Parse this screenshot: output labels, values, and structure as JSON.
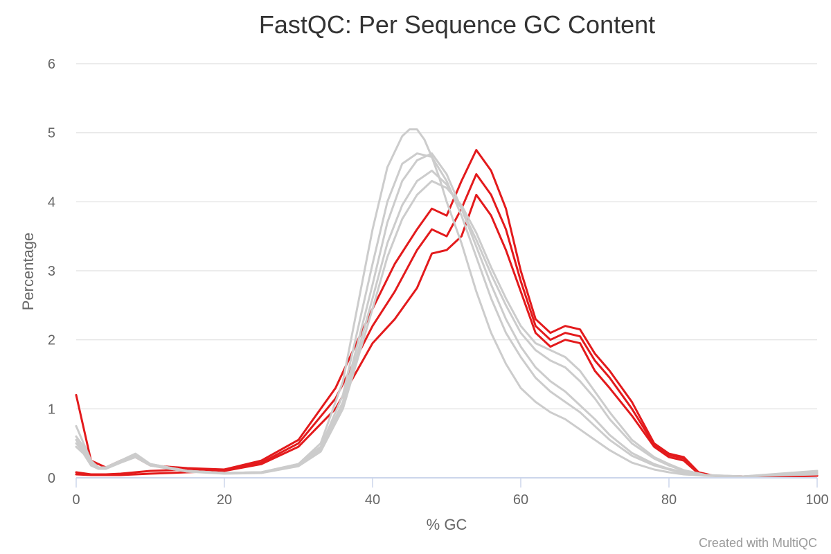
{
  "chart_data": {
    "type": "line",
    "title": "FastQC: Per Sequence GC Content",
    "xlabel": "% GC",
    "ylabel": "Percentage",
    "xlim": [
      0,
      100
    ],
    "ylim": [
      0,
      6
    ],
    "x_ticks": [
      "0",
      "20",
      "40",
      "60",
      "80",
      "100"
    ],
    "y_ticks": [
      "0",
      "1",
      "2",
      "3",
      "4",
      "5",
      "6"
    ],
    "grid": true,
    "legend": "none",
    "credit": "Created with MultiQC",
    "colors": {
      "fail": "#e31a1c",
      "pass": "#cccccc",
      "grid": "#e6e6e6",
      "axis": "#ccd6eb"
    },
    "series": [
      {
        "status": "fail",
        "x": [
          0,
          2,
          4,
          6,
          8,
          10,
          15,
          20,
          25,
          30,
          35,
          40,
          43,
          46,
          48,
          50,
          52,
          54,
          56,
          58,
          60,
          62,
          64,
          66,
          68,
          70,
          72,
          75,
          78,
          80,
          82,
          84,
          86,
          90,
          100
        ],
        "y": [
          1.2,
          0.25,
          0.15,
          0.25,
          0.3,
          0.18,
          0.14,
          0.12,
          0.25,
          0.55,
          1.3,
          2.45,
          3.1,
          3.6,
          3.9,
          3.8,
          4.3,
          4.75,
          4.45,
          3.9,
          3.0,
          2.3,
          2.1,
          2.2,
          2.15,
          1.8,
          1.55,
          1.1,
          0.5,
          0.35,
          0.3,
          0.08,
          0.03,
          0.02,
          0.03
        ]
      },
      {
        "status": "fail",
        "x": [
          0,
          2,
          4,
          6,
          8,
          10,
          15,
          20,
          25,
          30,
          35,
          40,
          43,
          46,
          48,
          50,
          52,
          54,
          56,
          58,
          60,
          62,
          64,
          66,
          68,
          70,
          72,
          75,
          78,
          80,
          82,
          84,
          86,
          90,
          100
        ],
        "y": [
          0.05,
          0.04,
          0.04,
          0.04,
          0.05,
          0.06,
          0.08,
          0.1,
          0.2,
          0.45,
          1.0,
          1.95,
          2.3,
          2.75,
          3.25,
          3.3,
          3.5,
          4.1,
          3.8,
          3.3,
          2.7,
          2.1,
          1.9,
          2.0,
          1.95,
          1.55,
          1.3,
          0.9,
          0.45,
          0.3,
          0.25,
          0.06,
          0.03,
          0.02,
          0.03
        ]
      },
      {
        "status": "fail",
        "x": [
          0,
          2,
          4,
          6,
          8,
          10,
          15,
          20,
          25,
          30,
          35,
          40,
          43,
          46,
          48,
          50,
          52,
          54,
          56,
          58,
          60,
          62,
          64,
          66,
          68,
          70,
          72,
          75,
          78,
          80,
          82,
          84,
          86,
          90,
          100
        ],
        "y": [
          0.08,
          0.05,
          0.05,
          0.06,
          0.08,
          0.1,
          0.12,
          0.12,
          0.22,
          0.5,
          1.15,
          2.2,
          2.7,
          3.3,
          3.6,
          3.5,
          3.9,
          4.4,
          4.1,
          3.6,
          2.85,
          2.2,
          2.0,
          2.1,
          2.05,
          1.7,
          1.45,
          1.0,
          0.48,
          0.33,
          0.28,
          0.07,
          0.03,
          0.02,
          0.03
        ]
      },
      {
        "status": "pass",
        "x": [
          0,
          1,
          2,
          3,
          4,
          6,
          8,
          10,
          15,
          20,
          25,
          30,
          33,
          36,
          40,
          42,
          44,
          45,
          46,
          47,
          48,
          49,
          50,
          52,
          54,
          56,
          58,
          60,
          62,
          64,
          66,
          68,
          70,
          72,
          75,
          78,
          80,
          82,
          85,
          90,
          100
        ],
        "y": [
          0.75,
          0.5,
          0.25,
          0.15,
          0.15,
          0.25,
          0.35,
          0.2,
          0.1,
          0.07,
          0.08,
          0.2,
          0.5,
          1.4,
          3.6,
          4.5,
          4.95,
          5.05,
          5.05,
          4.9,
          4.65,
          4.35,
          4.0,
          3.4,
          2.7,
          2.1,
          1.65,
          1.3,
          1.1,
          0.95,
          0.85,
          0.7,
          0.55,
          0.4,
          0.22,
          0.12,
          0.08,
          0.05,
          0.03,
          0.02,
          0.1
        ]
      },
      {
        "status": "pass",
        "x": [
          0,
          1,
          2,
          3,
          4,
          6,
          8,
          10,
          15,
          20,
          25,
          30,
          33,
          36,
          40,
          42,
          44,
          46,
          48,
          50,
          52,
          54,
          56,
          58,
          60,
          62,
          64,
          66,
          68,
          70,
          72,
          75,
          78,
          80,
          82,
          85,
          90,
          100
        ],
        "y": [
          0.6,
          0.45,
          0.22,
          0.15,
          0.15,
          0.25,
          0.33,
          0.2,
          0.1,
          0.07,
          0.08,
          0.2,
          0.45,
          1.2,
          3.1,
          4.0,
          4.55,
          4.7,
          4.65,
          4.3,
          3.8,
          3.2,
          2.6,
          2.1,
          1.75,
          1.45,
          1.25,
          1.1,
          0.95,
          0.75,
          0.55,
          0.32,
          0.18,
          0.12,
          0.07,
          0.03,
          0.02,
          0.08
        ]
      },
      {
        "status": "pass",
        "x": [
          0,
          1,
          2,
          3,
          4,
          6,
          8,
          10,
          15,
          20,
          25,
          30,
          33,
          36,
          40,
          42,
          44,
          46,
          48,
          50,
          52,
          54,
          56,
          58,
          60,
          62,
          64,
          66,
          68,
          70,
          72,
          75,
          78,
          80,
          82,
          85,
          90,
          100
        ],
        "y": [
          0.55,
          0.4,
          0.2,
          0.14,
          0.14,
          0.24,
          0.32,
          0.19,
          0.1,
          0.07,
          0.08,
          0.19,
          0.42,
          1.1,
          2.8,
          3.7,
          4.3,
          4.6,
          4.7,
          4.4,
          3.9,
          3.35,
          2.8,
          2.3,
          1.9,
          1.6,
          1.4,
          1.25,
          1.05,
          0.85,
          0.62,
          0.36,
          0.2,
          0.13,
          0.08,
          0.03,
          0.02,
          0.07
        ]
      },
      {
        "status": "pass",
        "x": [
          0,
          1,
          2,
          3,
          4,
          6,
          8,
          10,
          15,
          20,
          25,
          30,
          33,
          36,
          40,
          42,
          44,
          46,
          48,
          50,
          52,
          54,
          56,
          58,
          60,
          62,
          64,
          66,
          68,
          70,
          72,
          75,
          78,
          80,
          82,
          85,
          90,
          100
        ],
        "y": [
          0.5,
          0.38,
          0.2,
          0.14,
          0.14,
          0.23,
          0.3,
          0.18,
          0.09,
          0.07,
          0.08,
          0.18,
          0.4,
          1.05,
          2.6,
          3.4,
          3.95,
          4.3,
          4.45,
          4.25,
          3.9,
          3.45,
          2.95,
          2.5,
          2.1,
          1.85,
          1.7,
          1.6,
          1.4,
          1.15,
          0.85,
          0.5,
          0.28,
          0.18,
          0.1,
          0.04,
          0.02,
          0.06
        ]
      },
      {
        "status": "pass",
        "x": [
          0,
          1,
          2,
          3,
          4,
          6,
          8,
          10,
          15,
          20,
          25,
          30,
          33,
          36,
          40,
          42,
          44,
          46,
          48,
          50,
          52,
          54,
          56,
          58,
          60,
          62,
          64,
          66,
          68,
          70,
          72,
          75,
          78,
          80,
          82,
          85,
          90,
          100
        ],
        "y": [
          0.45,
          0.35,
          0.18,
          0.13,
          0.13,
          0.22,
          0.3,
          0.18,
          0.09,
          0.06,
          0.07,
          0.17,
          0.38,
          1.0,
          2.45,
          3.2,
          3.75,
          4.1,
          4.3,
          4.2,
          3.95,
          3.55,
          3.05,
          2.6,
          2.2,
          1.95,
          1.85,
          1.75,
          1.55,
          1.25,
          0.95,
          0.55,
          0.3,
          0.2,
          0.11,
          0.04,
          0.02,
          0.05
        ]
      }
    ]
  }
}
